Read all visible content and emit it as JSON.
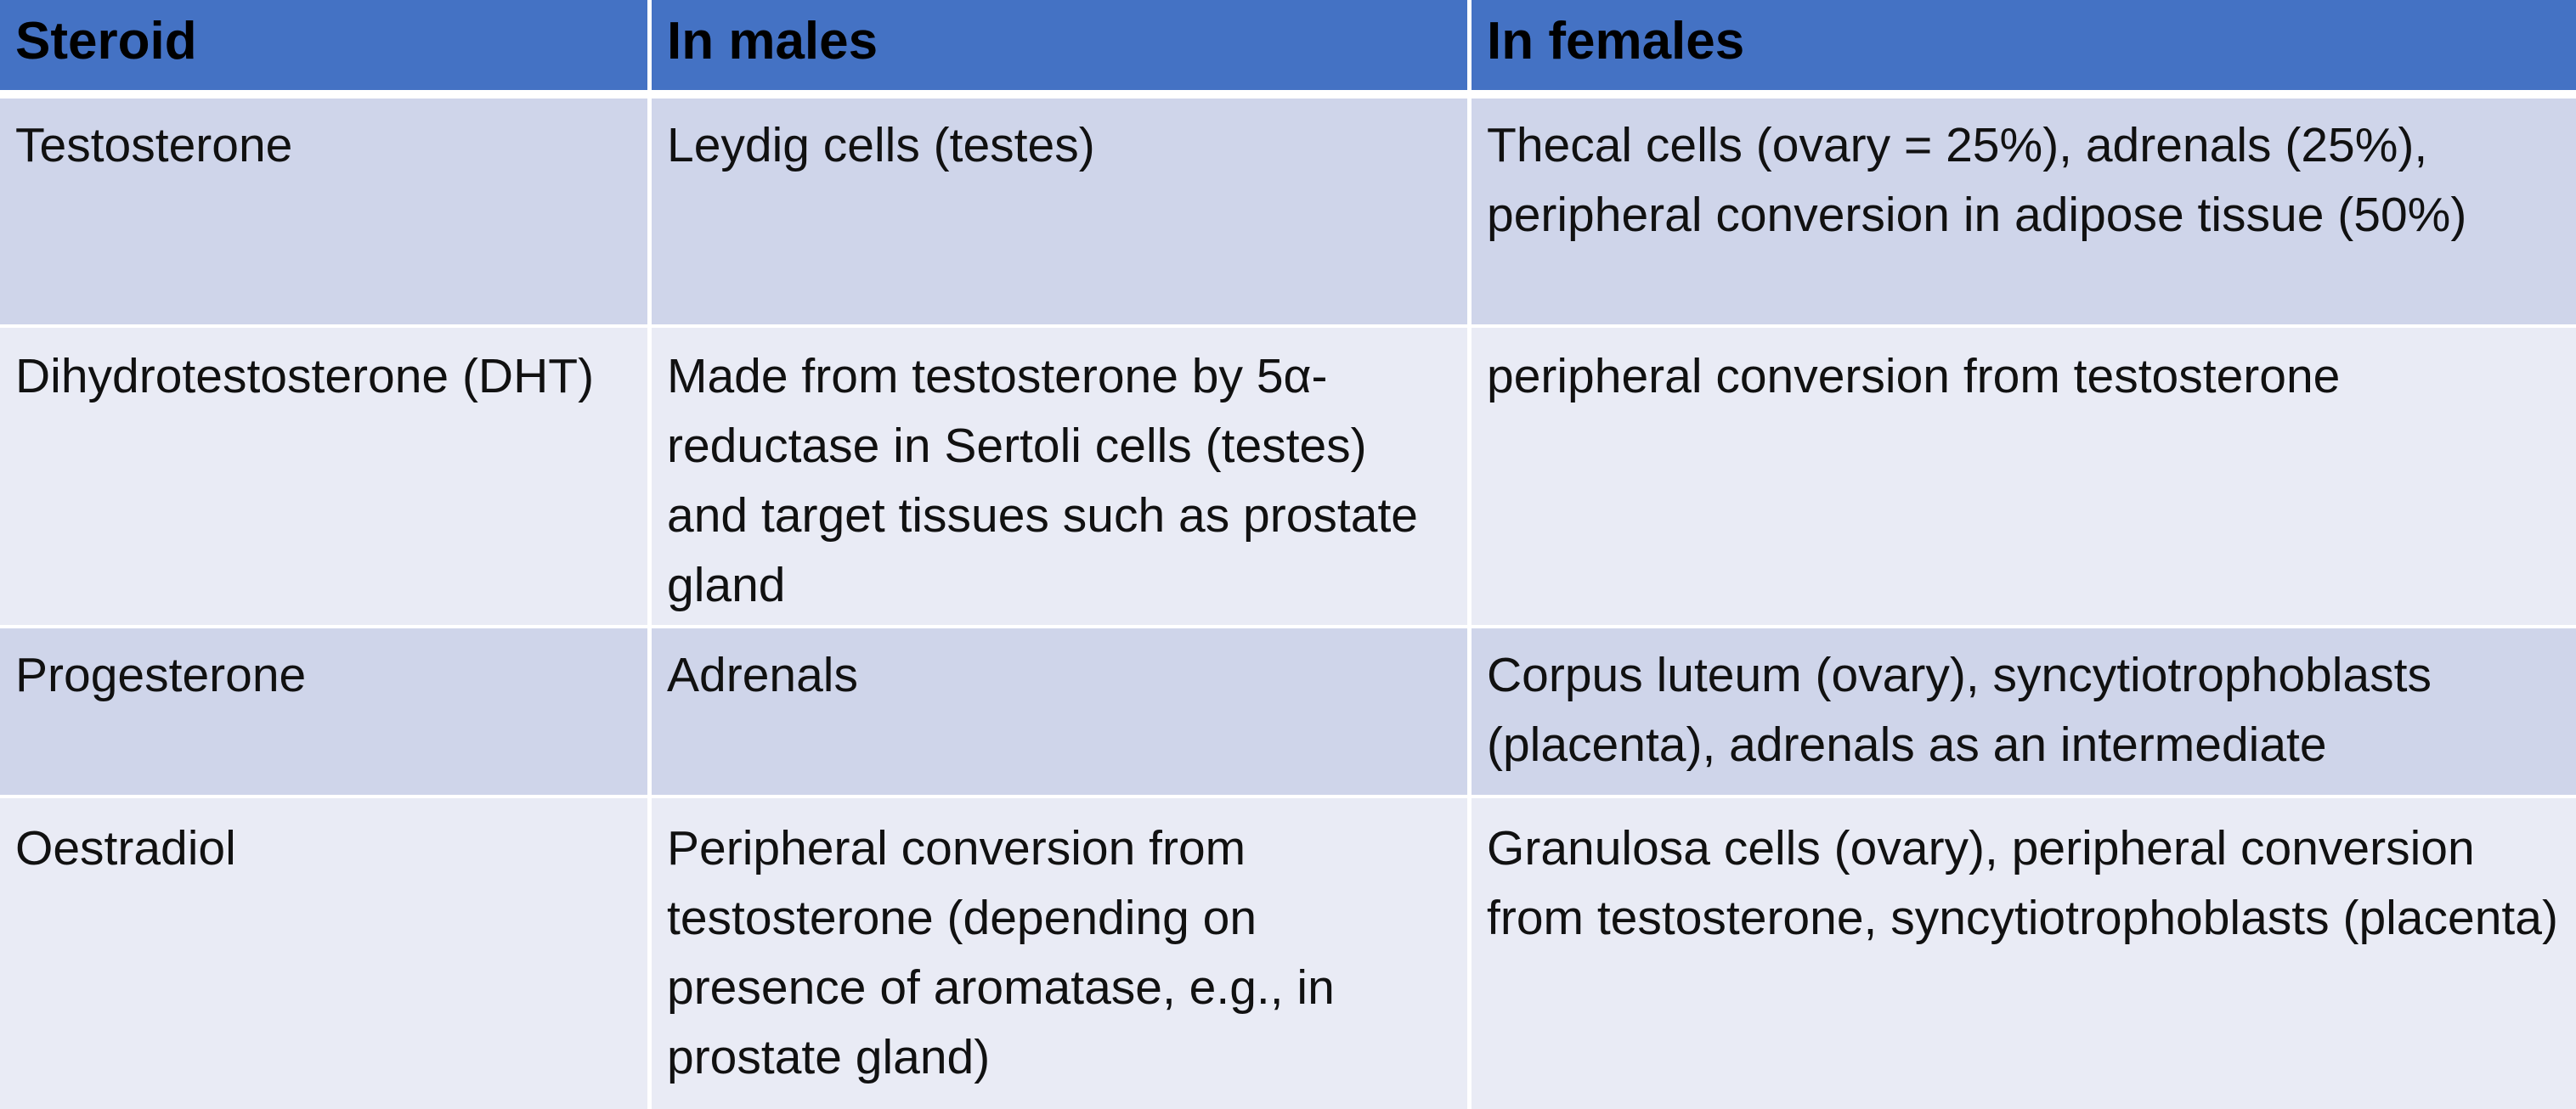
{
  "table": {
    "headers": [
      "Steroid",
      "In males",
      "In females"
    ],
    "rows": [
      {
        "steroid": "Testosterone",
        "males": "Leydig cells (testes)",
        "females": "Thecal cells (ovary = 25%), adrenals (25%), peripheral conversion in adipose tissue (50%)"
      },
      {
        "steroid": "Dihydrotestosterone (DHT)",
        "males": "Made from testosterone by 5α-reductase in Sertoli cells (testes) and target tissues such as prostate gland",
        "females": "peripheral conversion from testosterone"
      },
      {
        "steroid": "Progesterone",
        "males": "Adrenals",
        "females": "Corpus luteum (ovary), syncytiotrophoblasts (placenta), adrenals as an intermediate"
      },
      {
        "steroid": "Oestradiol",
        "males": "Peripheral conversion from testosterone (depending on presence of aromatase, e.g., in prostate gland)",
        "females": "Granulosa cells (ovary), peripheral conversion from testosterone, syncytiotrophoblasts (placenta)"
      }
    ]
  },
  "colors": {
    "header": "#4472c4",
    "row_dark": "#cfd5ea",
    "row_light": "#e9ebf5"
  }
}
